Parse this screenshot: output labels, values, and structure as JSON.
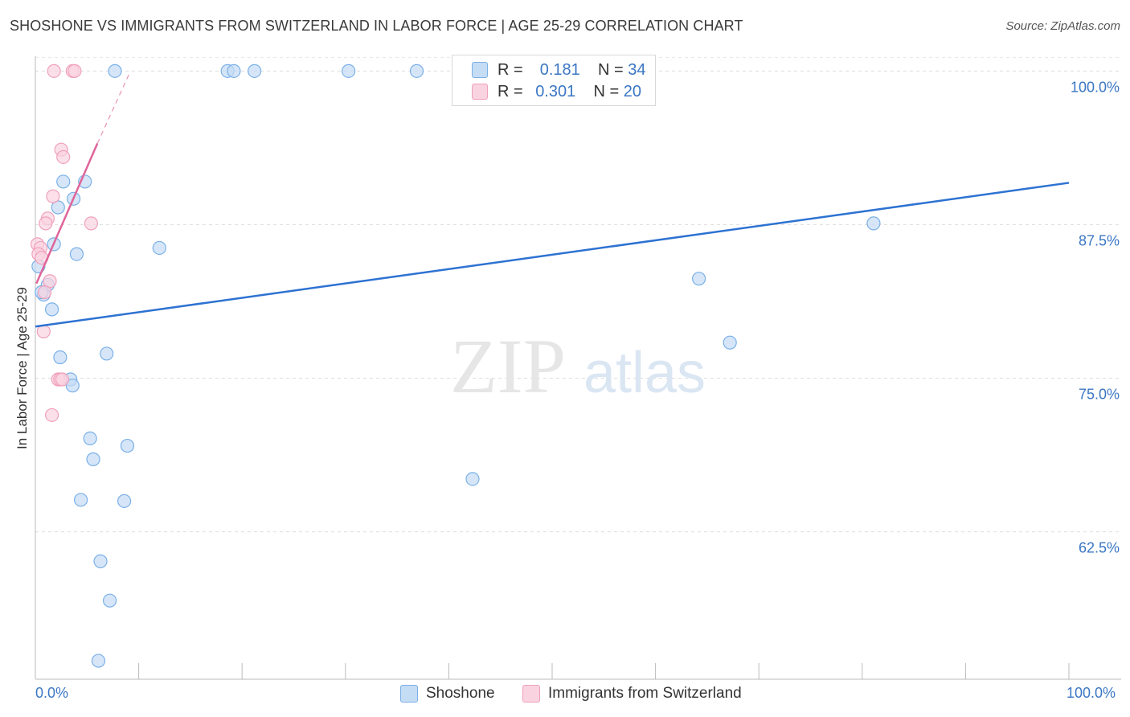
{
  "header": {
    "title": "SHOSHONE VS IMMIGRANTS FROM SWITZERLAND IN LABOR FORCE | AGE 25-29 CORRELATION CHART",
    "source": "Source: ZipAtlas.com"
  },
  "watermark": {
    "zip": "ZIP",
    "atlas": "atlas"
  },
  "legend": {
    "rows": [
      {
        "r_label": "R =",
        "r_value": "0.181",
        "n_label": "N =",
        "n_value": "34"
      },
      {
        "r_label": "R =",
        "r_value": "0.301",
        "n_label": "N =",
        "n_value": "20"
      }
    ]
  },
  "chart_data": {
    "type": "scatter",
    "title": "SHOSHONE VS IMMIGRANTS FROM SWITZERLAND IN LABOR FORCE | AGE 25-29 CORRELATION CHART",
    "xlabel": "",
    "ylabel": "In Labor Force | Age 25-29",
    "xlim": [
      0,
      100
    ],
    "ylim": [
      50.5,
      101.2
    ],
    "x_tick_labels": [
      "0.0%",
      "100.0%"
    ],
    "y_ticks": [
      100,
      87.5,
      75,
      62.5
    ],
    "y_tick_labels": [
      "100.0%",
      "87.5%",
      "75.0%",
      "62.5%"
    ],
    "grid": true,
    "legend_position": "top-center",
    "series": [
      {
        "name": "Shoshone",
        "color": "#7ab0e8",
        "fill": "#c5dcf5",
        "line_color": "#2d72d2",
        "trend": {
          "x0": 0,
          "y0": 79.2,
          "x1": 100,
          "y1": 90.9
        },
        "points": [
          {
            "x": 7.7,
            "y": 100
          },
          {
            "x": 18.6,
            "y": 100
          },
          {
            "x": 19.2,
            "y": 100
          },
          {
            "x": 21.2,
            "y": 100
          },
          {
            "x": 30.3,
            "y": 100
          },
          {
            "x": 36.9,
            "y": 100
          },
          {
            "x": 2.7,
            "y": 91.0
          },
          {
            "x": 4.8,
            "y": 91.0
          },
          {
            "x": 3.7,
            "y": 89.6
          },
          {
            "x": 2.2,
            "y": 88.9
          },
          {
            "x": 1.8,
            "y": 85.9
          },
          {
            "x": 4.0,
            "y": 85.1
          },
          {
            "x": 12.0,
            "y": 85.6
          },
          {
            "x": 0.3,
            "y": 84.1
          },
          {
            "x": 1.2,
            "y": 82.6
          },
          {
            "x": 0.8,
            "y": 81.8
          },
          {
            "x": 1.6,
            "y": 80.6
          },
          {
            "x": 2.4,
            "y": 76.7
          },
          {
            "x": 6.9,
            "y": 77.0
          },
          {
            "x": 3.4,
            "y": 74.9
          },
          {
            "x": 3.6,
            "y": 74.4
          },
          {
            "x": 5.3,
            "y": 70.1
          },
          {
            "x": 5.6,
            "y": 68.4
          },
          {
            "x": 8.9,
            "y": 69.5
          },
          {
            "x": 4.4,
            "y": 65.1
          },
          {
            "x": 8.6,
            "y": 65.0
          },
          {
            "x": 6.3,
            "y": 60.1
          },
          {
            "x": 7.2,
            "y": 56.9
          },
          {
            "x": 6.1,
            "y": 52.0
          },
          {
            "x": 81.1,
            "y": 87.6
          },
          {
            "x": 64.2,
            "y": 83.1
          },
          {
            "x": 67.2,
            "y": 77.9
          },
          {
            "x": 42.3,
            "y": 66.8
          },
          {
            "x": 0.6,
            "y": 82.0
          }
        ]
      },
      {
        "name": "Immigrants from Switzerland",
        "color": "#f0a0bc",
        "fill": "#f9d3df",
        "line_color": "#e0659a",
        "trend": {
          "x0": 0.1,
          "y0": 82.7,
          "x1": 6.0,
          "y1": 94.1
        },
        "trend_dashed": {
          "x0": 6.0,
          "y0": 94.1,
          "x1": 9.2,
          "y1": 100
        },
        "points": [
          {
            "x": 1.8,
            "y": 100
          },
          {
            "x": 3.6,
            "y": 100
          },
          {
            "x": 3.8,
            "y": 100
          },
          {
            "x": 2.5,
            "y": 93.6
          },
          {
            "x": 2.7,
            "y": 93.0
          },
          {
            "x": 1.7,
            "y": 89.8
          },
          {
            "x": 1.2,
            "y": 88.0
          },
          {
            "x": 1.0,
            "y": 87.6
          },
          {
            "x": 5.4,
            "y": 87.6
          },
          {
            "x": 0.2,
            "y": 85.9
          },
          {
            "x": 0.5,
            "y": 85.6
          },
          {
            "x": 0.3,
            "y": 85.1
          },
          {
            "x": 0.6,
            "y": 84.8
          },
          {
            "x": 1.4,
            "y": 82.9
          },
          {
            "x": 0.9,
            "y": 82.0
          },
          {
            "x": 0.8,
            "y": 78.8
          },
          {
            "x": 2.2,
            "y": 74.9
          },
          {
            "x": 2.4,
            "y": 74.9
          },
          {
            "x": 2.6,
            "y": 74.9
          },
          {
            "x": 1.6,
            "y": 72.0
          }
        ]
      }
    ]
  }
}
